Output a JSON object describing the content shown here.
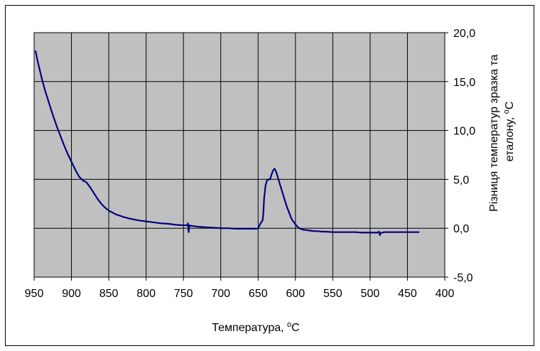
{
  "chart_data": {
    "type": "line",
    "title": "",
    "xlabel": {
      "main": "Температура, ",
      "sup": "o",
      "unit": "C"
    },
    "ylabel": {
      "line1": "Різниця температур зразка та",
      "line2_main": "еталону, ",
      "line2_sup": "o",
      "line2_unit": "C"
    },
    "x_reversed": true,
    "xlim": [
      950,
      400
    ],
    "ylim": [
      -5,
      20
    ],
    "y_axis_side": "right",
    "x_ticks": [
      950,
      900,
      850,
      800,
      750,
      700,
      650,
      600,
      550,
      500,
      450,
      400
    ],
    "x_tick_labels": [
      "950",
      "900",
      "850",
      "800",
      "750",
      "700",
      "650",
      "600",
      "550",
      "500",
      "450",
      "400"
    ],
    "y_ticks": [
      20,
      15,
      10,
      5,
      0,
      -5
    ],
    "y_tick_labels": [
      "20,0",
      "15,0",
      "10,0",
      "5,0",
      "0,0",
      "-5,0"
    ],
    "grid": true,
    "plot_background": "#c0c0c0",
    "line_color": "#000080",
    "series": [
      {
        "x": [
          948,
          945,
          940,
          935,
          930,
          925,
          920,
          915,
          910,
          905,
          900,
          895,
          890,
          885,
          880,
          875,
          870,
          865,
          860,
          855,
          850,
          845,
          840,
          830,
          820,
          810,
          800,
          790,
          780,
          770,
          760,
          750,
          745,
          744,
          743,
          742,
          740,
          735,
          730,
          720,
          710,
          700,
          690,
          680,
          670,
          660,
          652,
          650,
          648,
          646,
          644,
          643,
          642,
          640,
          638,
          636,
          634,
          632,
          630,
          628,
          626,
          624,
          622,
          620,
          618,
          616,
          614,
          612,
          610,
          608,
          606,
          604,
          602,
          600,
          598,
          595,
          590,
          585,
          580,
          575,
          570,
          565,
          560,
          550,
          540,
          530,
          520,
          510,
          500,
          495,
          490,
          488,
          487,
          486,
          484,
          480,
          470,
          460,
          450,
          440,
          435
        ],
        "y": [
          18.1,
          17.0,
          15.4,
          14.0,
          12.8,
          11.6,
          10.5,
          9.5,
          8.5,
          7.6,
          6.8,
          6.0,
          5.3,
          4.9,
          4.7,
          4.2,
          3.6,
          3.0,
          2.5,
          2.1,
          1.8,
          1.6,
          1.4,
          1.15,
          0.95,
          0.8,
          0.7,
          0.6,
          0.5,
          0.45,
          0.35,
          0.3,
          0.3,
          0.5,
          -0.4,
          0.3,
          0.25,
          0.2,
          0.15,
          0.1,
          0.05,
          0.0,
          0.0,
          -0.05,
          -0.05,
          -0.05,
          -0.05,
          0.0,
          0.3,
          0.6,
          0.8,
          1.5,
          3.0,
          4.4,
          4.9,
          5.0,
          5.0,
          5.5,
          5.9,
          6.1,
          5.8,
          5.3,
          4.8,
          4.3,
          3.8,
          3.3,
          2.8,
          2.3,
          1.9,
          1.5,
          1.1,
          0.8,
          0.6,
          0.4,
          0.2,
          0.0,
          -0.15,
          -0.2,
          -0.25,
          -0.3,
          -0.3,
          -0.35,
          -0.35,
          -0.4,
          -0.4,
          -0.4,
          -0.4,
          -0.45,
          -0.45,
          -0.45,
          -0.45,
          -0.35,
          -0.7,
          -0.5,
          -0.45,
          -0.4,
          -0.4,
          -0.4,
          -0.4,
          -0.4,
          -0.4
        ]
      }
    ]
  }
}
